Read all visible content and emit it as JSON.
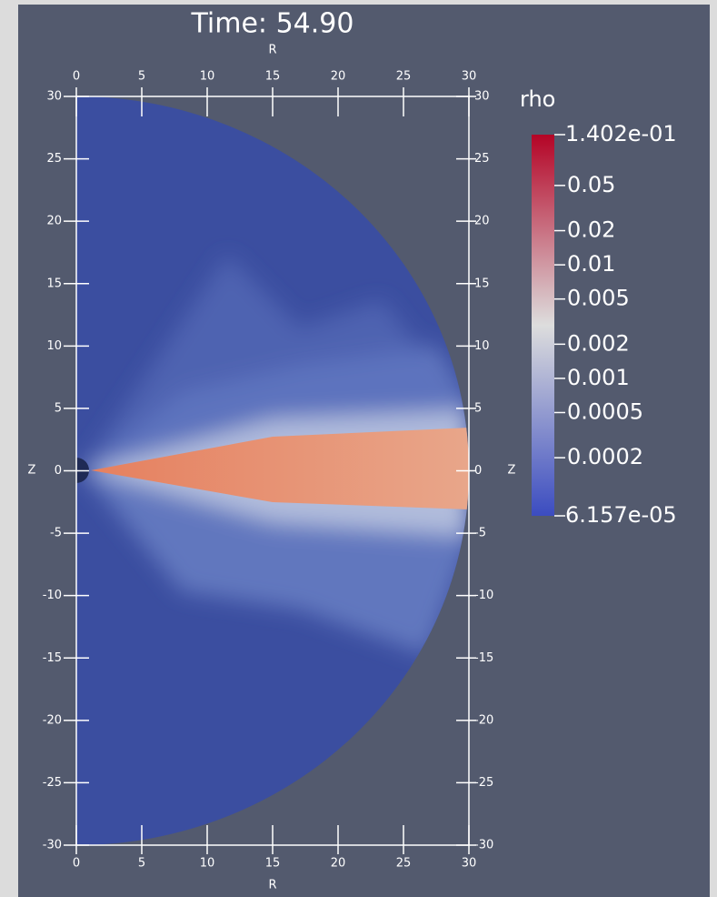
{
  "chart_data": {
    "type": "density",
    "title": "Time: 54.90",
    "xlabel": "R",
    "ylabel": "Z",
    "xlim": [
      0,
      30
    ],
    "xticks": [
      0,
      5,
      10,
      15,
      20,
      25,
      30
    ],
    "ylim": [
      -30,
      30
    ],
    "yticks": [
      -30,
      -25,
      -20,
      -15,
      -10,
      -5,
      0,
      5,
      10,
      15,
      20,
      25,
      30
    ],
    "colorbar": {
      "label": "rho",
      "log": true,
      "lim": [
        {
          "value": 6.157e-05,
          "label": "6.157e-05"
        },
        {
          "value": 0.1402,
          "label": "1.402e-01"
        }
      ],
      "ticks": [
        0.05,
        0.02,
        0.01,
        0.005,
        0.002,
        0.001,
        0.0005,
        0.0002
      ],
      "colors": [
        "#3b4cc0",
        "#dddddd",
        "#b40426"
      ]
    }
  }
}
